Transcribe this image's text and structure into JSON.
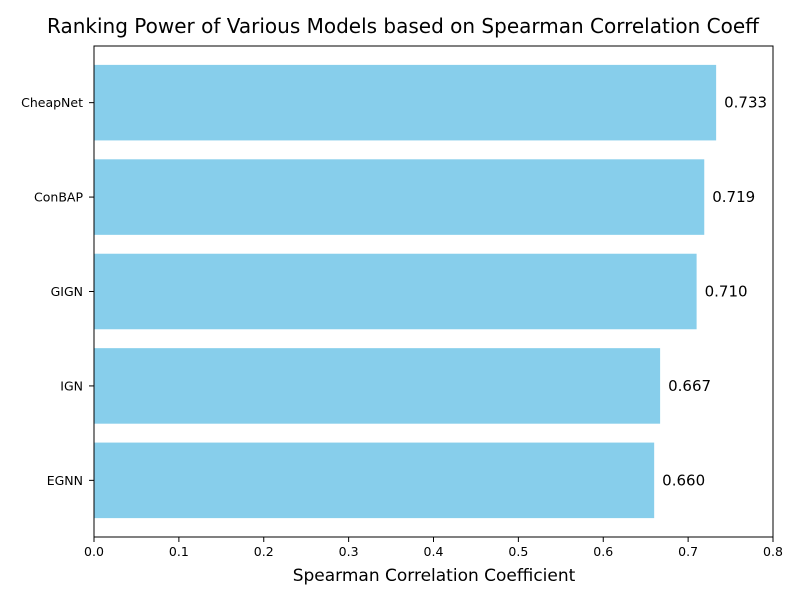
{
  "chart_data": {
    "type": "bar",
    "orientation": "horizontal",
    "title": "Ranking Power of Various Models based on Spearman Correlation Coeff",
    "xlabel": "Spearman Correlation Coefficient",
    "ylabel": "",
    "categories": [
      "CheapNet",
      "ConBAP",
      "GIGN",
      "IGN",
      "EGNN"
    ],
    "values": [
      0.733,
      0.719,
      0.71,
      0.667,
      0.66
    ],
    "value_labels": [
      "0.733",
      "0.719",
      "0.710",
      "0.667",
      "0.660"
    ],
    "xlim": [
      0.0,
      0.8
    ],
    "xticks": [
      "0.0",
      "0.1",
      "0.2",
      "0.3",
      "0.4",
      "0.5",
      "0.6",
      "0.7",
      "0.8"
    ],
    "grid": false,
    "bar_color": "#87ceeb"
  }
}
